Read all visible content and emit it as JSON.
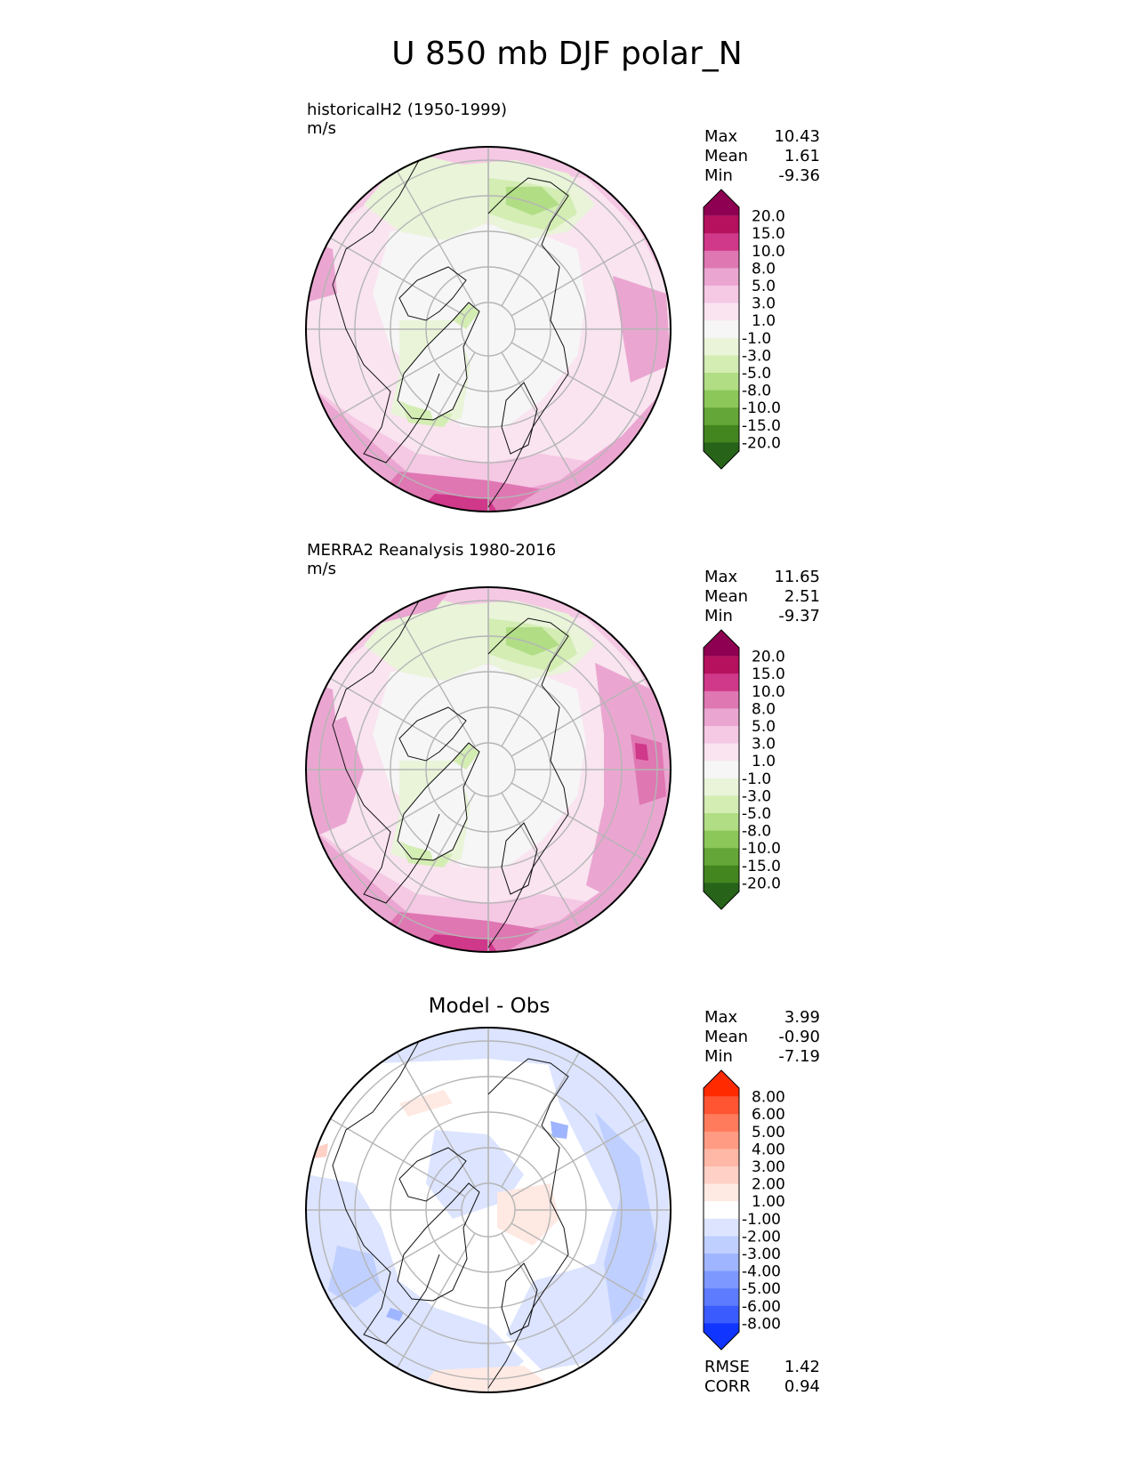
{
  "figure": {
    "title": "U 850 mb DJF polar_N"
  },
  "chart_data": [
    {
      "type": "heatmap",
      "projection": "north polar stereographic",
      "title_line1": "historicalH2 (1950-1999)",
      "title_line2": "m/s",
      "stats": [
        {
          "label": "Max",
          "value": "10.43"
        },
        {
          "label": "Mean",
          "value": "1.61"
        },
        {
          "label": "Min",
          "value": "-9.36"
        }
      ],
      "colorbar": {
        "levels": [
          "20.0",
          "15.0",
          "10.0",
          "8.0",
          "5.0",
          "3.0",
          "1.0",
          "-1.0",
          "-3.0",
          "-5.0",
          "-8.0",
          "-10.0",
          "-15.0",
          "-20.0"
        ],
        "colors": [
          "#8e0152",
          "#b5115f",
          "#d0388a",
          "#df77b3",
          "#eaa6d1",
          "#f5c8e4",
          "#f9e4f0",
          "#f6f6f6",
          "#e9f4d9",
          "#d3edb3",
          "#b1dd85",
          "#8cc75a",
          "#64a637",
          "#43861f",
          "#276419"
        ]
      }
    },
    {
      "type": "heatmap",
      "projection": "north polar stereographic",
      "title_line1": "MERRA2 Reanalysis 1980-2016",
      "title_line2": "m/s",
      "stats": [
        {
          "label": "Max",
          "value": "11.65"
        },
        {
          "label": "Mean",
          "value": "2.51"
        },
        {
          "label": "Min",
          "value": "-9.37"
        }
      ],
      "colorbar": {
        "levels": [
          "20.0",
          "15.0",
          "10.0",
          "8.0",
          "5.0",
          "3.0",
          "1.0",
          "-1.0",
          "-3.0",
          "-5.0",
          "-8.0",
          "-10.0",
          "-15.0",
          "-20.0"
        ],
        "colors": [
          "#8e0152",
          "#b5115f",
          "#d0388a",
          "#df77b3",
          "#eaa6d1",
          "#f5c8e4",
          "#f9e4f0",
          "#f6f6f6",
          "#e9f4d9",
          "#d3edb3",
          "#b1dd85",
          "#8cc75a",
          "#64a637",
          "#43861f",
          "#276419"
        ]
      }
    },
    {
      "type": "heatmap",
      "projection": "north polar stereographic",
      "title": "Model - Obs",
      "stats": [
        {
          "label": "Max",
          "value": "3.99"
        },
        {
          "label": "Mean",
          "value": "-0.90"
        },
        {
          "label": "Min",
          "value": "-7.19"
        }
      ],
      "metrics": [
        {
          "label": "RMSE",
          "value": "1.42"
        },
        {
          "label": "CORR",
          "value": "0.94"
        }
      ],
      "colorbar": {
        "levels": [
          "8.00",
          "6.00",
          "5.00",
          "4.00",
          "3.00",
          "2.00",
          "1.00",
          "-1.00",
          "-2.00",
          "-3.00",
          "-4.00",
          "-5.00",
          "-6.00",
          "-8.00"
        ],
        "colors": [
          "#ff2a00",
          "#ff5533",
          "#ff7b5b",
          "#ff9b83",
          "#ffb7a6",
          "#ffd1c6",
          "#ffe9e3",
          "#ffffff",
          "#dce4ff",
          "#bfcfff",
          "#9fb5ff",
          "#7d98ff",
          "#5c7bff",
          "#3a5cff",
          "#0f35ff"
        ]
      }
    }
  ]
}
